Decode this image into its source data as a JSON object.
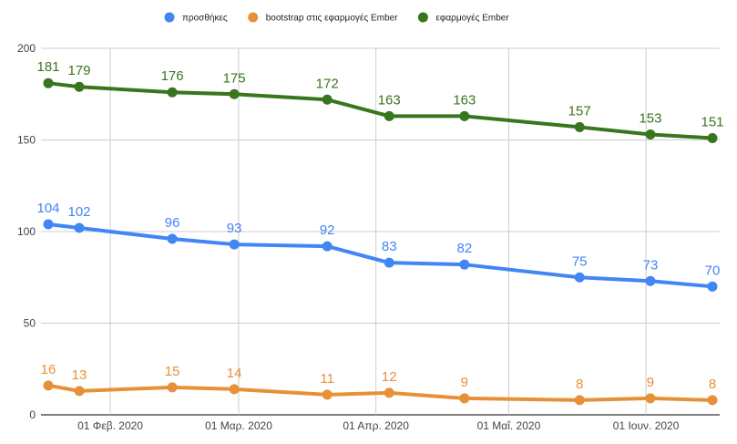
{
  "chart_data": {
    "type": "line",
    "title": "",
    "xlabel": "",
    "ylabel": "",
    "ylim": [
      0,
      200
    ],
    "yticks": [
      0,
      50,
      100,
      150,
      200
    ],
    "ytick_labels": [
      "0",
      "50",
      "100",
      "150",
      "200"
    ],
    "grid": true,
    "legend_position": "top",
    "x": [
      "2020-01-18",
      "2020-01-25",
      "2020-02-15",
      "2020-02-29",
      "2020-03-21",
      "2020-04-04",
      "2020-04-21",
      "2020-05-17",
      "2020-06-02",
      "2020-06-16"
    ],
    "xticks": [
      "2020-02-01",
      "2020-03-01",
      "2020-04-01",
      "2020-05-01",
      "2020-06-01"
    ],
    "xtick_labels": [
      "01 Φεβ. 2020",
      "01 Μαρ. 2020",
      "01 Απρ. 2020",
      "01 Μαΐ. 2020",
      "01 Ιουν. 2020"
    ],
    "series": [
      {
        "name": "προσθήκες",
        "color": "#4285f4",
        "values": [
          104,
          102,
          96,
          93,
          92,
          83,
          82,
          75,
          73,
          70
        ]
      },
      {
        "name": "bootstrap στις εφαρμογές Ember",
        "color": "#e69138",
        "values": [
          16,
          13,
          15,
          14,
          11,
          12,
          9,
          8,
          9,
          8
        ]
      },
      {
        "name": "εφαρμογές Ember",
        "color": "#38761d",
        "values": [
          181,
          179,
          176,
          175,
          172,
          163,
          163,
          157,
          153,
          151
        ]
      }
    ]
  }
}
